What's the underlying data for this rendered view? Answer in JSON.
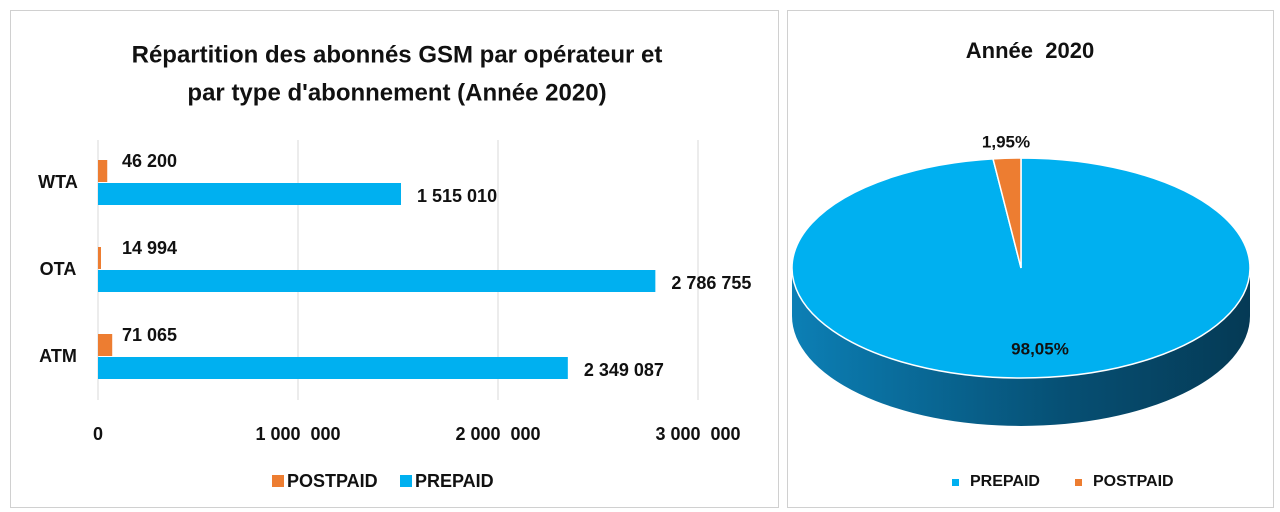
{
  "chart_data": [
    {
      "type": "barh",
      "title": [
        "Répartition des abonnés GSM par opérateur et",
        "par type d'abonnement (Année 2020)"
      ],
      "categories": [
        "WTA",
        "OTA",
        "ATM"
      ],
      "series": [
        {
          "name": "POSTPAID",
          "color": "#ed7d31",
          "values": [
            46200,
            14994,
            71065
          ],
          "value_labels": [
            "46 200",
            "14 994",
            "71 065"
          ]
        },
        {
          "name": "PREPAID",
          "color": "#00b0f0",
          "values": [
            1515010,
            2786755,
            2349087
          ],
          "value_labels": [
            "1 515 010",
            "2 786 755",
            "2 349 087"
          ]
        }
      ],
      "xlim": [
        0,
        3000000
      ],
      "xticks": [
        0,
        {
          "value": 1000000,
          "label": "1 000  000"
        },
        {
          "value": 2000000,
          "label": "2 000  000"
        },
        {
          "value": 3000000,
          "label": "3 000  000"
        }
      ],
      "grid": true,
      "legend": "bottom"
    },
    {
      "type": "pie3d",
      "title": "Année  2020",
      "categories": [
        "PREPAID",
        "POSTPAID"
      ],
      "values": [
        98.05,
        1.95
      ],
      "value_labels": [
        "98,05%",
        "1,95%"
      ],
      "colors": [
        "#00b0f0",
        "#ed7d31"
      ],
      "legend": "bottom"
    }
  ]
}
